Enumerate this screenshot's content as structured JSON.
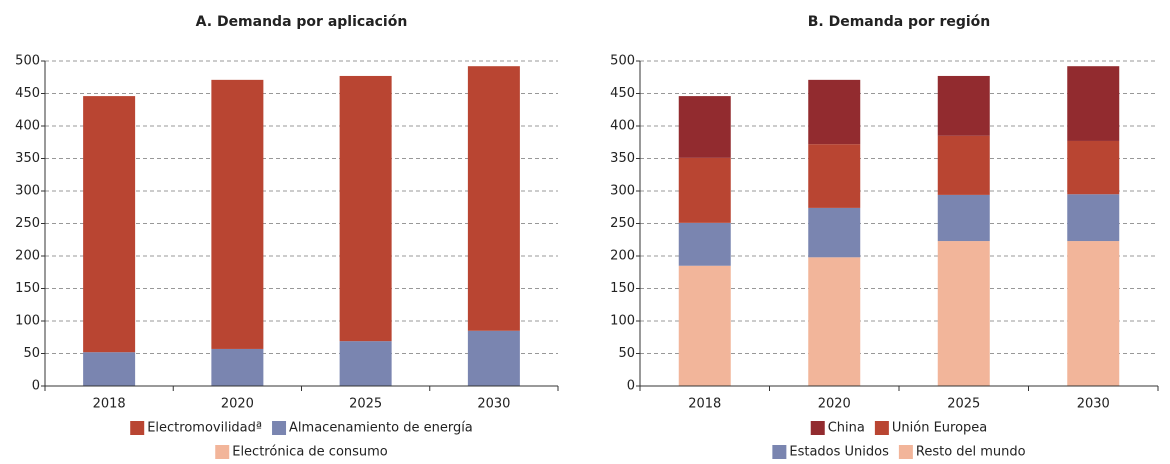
{
  "chart_data": [
    {
      "type": "stacked_bar",
      "title": "A. Demanda por aplicación",
      "categories": [
        "2018",
        "2020",
        "2025",
        "2030"
      ],
      "series": [
        {
          "name": "Electromovilidadª",
          "color": "#b94532",
          "values": [
            394,
            414,
            408,
            407
          ]
        },
        {
          "name": "Almacenamiento de energía",
          "color": "#7a85b0",
          "values": [
            52,
            57,
            69,
            85
          ]
        },
        {
          "name": "Electrónica de consumo",
          "color": "#f2b59a",
          "values": [
            0,
            0,
            0,
            0
          ]
        }
      ],
      "ylim": [
        0,
        500
      ],
      "yticks": [
        0,
        50,
        100,
        150,
        200,
        250,
        300,
        350,
        400,
        450,
        500
      ],
      "grid": true,
      "legend": "bottom"
    },
    {
      "type": "stacked_bar",
      "title": "B. Demanda por región",
      "categories": [
        "2018",
        "2020",
        "2025",
        "2030"
      ],
      "series": [
        {
          "name": "China",
          "color": "#922b2f",
          "values": [
            95,
            99,
            92,
            115
          ]
        },
        {
          "name": "Unión Europea",
          "color": "#b94532",
          "values": [
            100,
            98,
            91,
            82
          ]
        },
        {
          "name": "Estados Unidos",
          "color": "#7a85b0",
          "values": [
            66,
            76,
            71,
            72
          ]
        },
        {
          "name": "Resto del mundo",
          "color": "#f2b59a",
          "values": [
            185,
            198,
            223,
            223
          ]
        }
      ],
      "ylim": [
        0,
        500
      ],
      "yticks": [
        0,
        50,
        100,
        150,
        200,
        250,
        300,
        350,
        400,
        450,
        500
      ],
      "grid": true,
      "legend": "bottom"
    }
  ]
}
